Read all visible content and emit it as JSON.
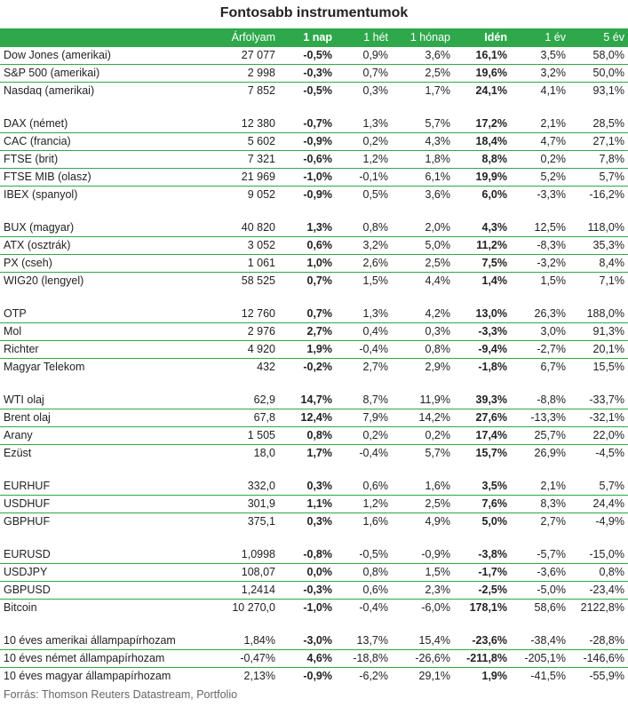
{
  "title": "Fontosabb instrumentumok",
  "columns": [
    "",
    "Árfolyam",
    "1 nap",
    "1 hét",
    "1 hónap",
    "Idén",
    "1 év",
    "5 év"
  ],
  "bold_columns": [
    2,
    5
  ],
  "groups": [
    [
      [
        "Dow Jones (amerikai)",
        "27 077",
        "-0,5%",
        "0,9%",
        "3,6%",
        "16,1%",
        "3,5%",
        "58,0%"
      ],
      [
        "S&P 500 (amerikai)",
        "2 998",
        "-0,3%",
        "0,7%",
        "2,5%",
        "19,6%",
        "3,2%",
        "50,0%"
      ],
      [
        "Nasdaq (amerikai)",
        "7 852",
        "-0,5%",
        "0,3%",
        "1,7%",
        "24,1%",
        "4,1%",
        "93,1%"
      ]
    ],
    [
      [
        "DAX (német)",
        "12 380",
        "-0,7%",
        "1,3%",
        "5,7%",
        "17,2%",
        "2,1%",
        "28,5%"
      ],
      [
        "CAC (francia)",
        "5 602",
        "-0,9%",
        "0,2%",
        "4,3%",
        "18,4%",
        "4,7%",
        "27,1%"
      ],
      [
        "FTSE (brit)",
        "7 321",
        "-0,6%",
        "1,2%",
        "1,8%",
        "8,8%",
        "0,2%",
        "7,8%"
      ],
      [
        "FTSE MIB (olasz)",
        "21 969",
        "-1,0%",
        "-0,1%",
        "6,1%",
        "19,9%",
        "5,2%",
        "5,7%"
      ],
      [
        "IBEX (spanyol)",
        "9 052",
        "-0,9%",
        "0,5%",
        "3,6%",
        "6,0%",
        "-3,3%",
        "-16,2%"
      ]
    ],
    [
      [
        "BUX (magyar)",
        "40 820",
        "1,3%",
        "0,8%",
        "2,0%",
        "4,3%",
        "12,5%",
        "118,0%"
      ],
      [
        "ATX (osztrák)",
        "3 052",
        "0,6%",
        "3,2%",
        "5,0%",
        "11,2%",
        "-8,3%",
        "35,3%"
      ],
      [
        "PX (cseh)",
        "1 061",
        "1,0%",
        "2,6%",
        "2,5%",
        "7,5%",
        "-3,2%",
        "8,4%"
      ],
      [
        "WIG20 (lengyel)",
        "58 525",
        "0,7%",
        "1,5%",
        "4,4%",
        "1,4%",
        "1,5%",
        "7,1%"
      ]
    ],
    [
      [
        "OTP",
        "12 760",
        "0,7%",
        "1,3%",
        "4,2%",
        "13,0%",
        "26,3%",
        "188,0%"
      ],
      [
        "Mol",
        "2 976",
        "2,7%",
        "0,4%",
        "0,3%",
        "-3,3%",
        "3,0%",
        "91,3%"
      ],
      [
        "Richter",
        "4 920",
        "1,9%",
        "-0,4%",
        "0,8%",
        "-9,4%",
        "-2,7%",
        "20,1%"
      ],
      [
        "Magyar Telekom",
        "432",
        "-0,2%",
        "2,7%",
        "2,9%",
        "-1,8%",
        "6,7%",
        "15,5%"
      ]
    ],
    [
      [
        "WTI olaj",
        "62,9",
        "14,7%",
        "8,7%",
        "11,9%",
        "39,3%",
        "-8,8%",
        "-33,7%"
      ],
      [
        "Brent olaj",
        "67,8",
        "12,4%",
        "7,9%",
        "14,2%",
        "27,6%",
        "-13,3%",
        "-32,1%"
      ],
      [
        "Arany",
        "1 505",
        "0,8%",
        "0,2%",
        "0,2%",
        "17,4%",
        "25,7%",
        "22,0%"
      ],
      [
        "Ezüst",
        "18,0",
        "1,7%",
        "-0,4%",
        "5,7%",
        "15,7%",
        "26,9%",
        "-4,5%"
      ]
    ],
    [
      [
        "EURHUF",
        "332,0",
        "0,3%",
        "0,6%",
        "1,6%",
        "3,5%",
        "2,1%",
        "5,7%"
      ],
      [
        "USDHUF",
        "301,9",
        "1,1%",
        "1,2%",
        "2,5%",
        "7,6%",
        "8,3%",
        "24,4%"
      ],
      [
        "GBPHUF",
        "375,1",
        "0,3%",
        "1,6%",
        "4,9%",
        "5,0%",
        "2,7%",
        "-4,9%"
      ]
    ],
    [
      [
        "EURUSD",
        "1,0998",
        "-0,8%",
        "-0,5%",
        "-0,9%",
        "-3,8%",
        "-5,7%",
        "-15,0%"
      ],
      [
        "USDJPY",
        "108,07",
        "0,0%",
        "0,8%",
        "1,5%",
        "-1,7%",
        "-3,6%",
        "0,8%"
      ],
      [
        "GBPUSD",
        "1,2414",
        "-0,3%",
        "0,6%",
        "2,3%",
        "-2,5%",
        "-5,0%",
        "-23,4%"
      ],
      [
        "Bitcoin",
        "10 270,0",
        "-1,0%",
        "-0,4%",
        "-6,0%",
        "178,1%",
        "58,6%",
        "2122,8%"
      ]
    ],
    [
      [
        "10 éves amerikai állampapírhozam",
        "1,84%",
        "-3,0%",
        "13,7%",
        "15,4%",
        "-23,6%",
        "-38,4%",
        "-28,8%"
      ],
      [
        "10 éves német állampapírhozam",
        "-0,47%",
        "4,6%",
        "-18,8%",
        "-26,6%",
        "-211,8%",
        "-205,1%",
        "-146,6%"
      ],
      [
        "10 éves magyar állampapírhozam",
        "2,13%",
        "-0,9%",
        "-6,2%",
        "29,1%",
        "1,9%",
        "-41,5%",
        "-55,9%"
      ]
    ]
  ],
  "source": "Forrás: Thomson Reuters Datastream, Portfolio",
  "colors": {
    "header_bg": "#2ea84a",
    "header_text": "#ffffff",
    "row_divider": "#2ea84a"
  }
}
